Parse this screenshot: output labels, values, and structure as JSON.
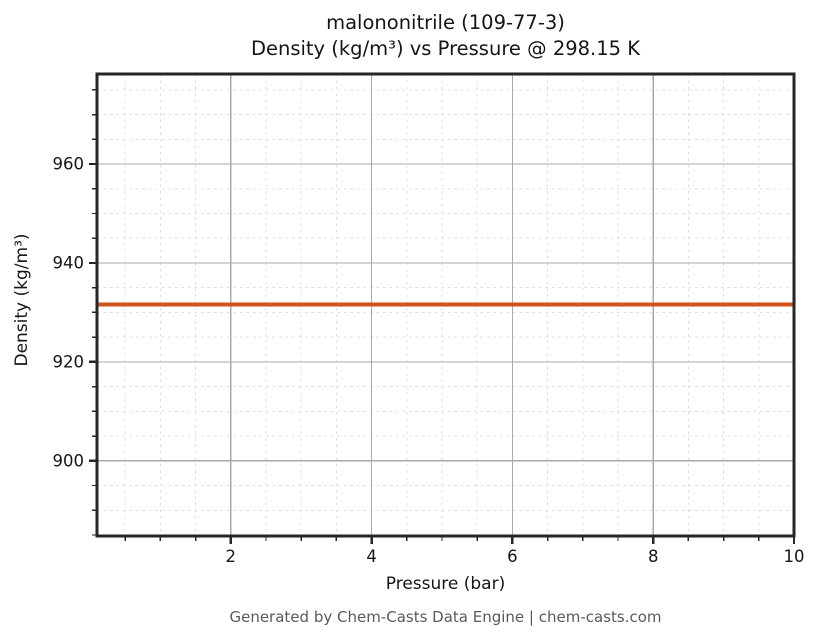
{
  "title": {
    "line1": "malononitrile (109-77-3)",
    "line2": "Density (kg/m³) vs Pressure @ 298.15 K"
  },
  "footer": "Generated by Chem-Casts Data Engine | chem-casts.com",
  "chart_data": {
    "type": "line",
    "title": "malononitrile (109-77-3)\nDensity (kg/m³) vs Pressure @ 298.15 K",
    "xlabel": "Pressure (bar)",
    "ylabel": "Density (kg/m³)",
    "xlim": [
      0.1,
      10
    ],
    "ylim": [
      884.8,
      978.2
    ],
    "x_major_ticks": [
      2,
      4,
      6,
      8,
      10
    ],
    "y_major_ticks": [
      900,
      920,
      940,
      960
    ],
    "x_minor_step": 0.5,
    "y_minor_step": 5,
    "grid": {
      "major": "solid",
      "minor": "dashed"
    },
    "legend": "none",
    "series": [
      {
        "name": "Density",
        "color": "#d2521e",
        "linewidth": 4,
        "x": [
          0.1,
          1,
          2,
          3,
          4,
          5,
          6,
          7,
          8,
          9,
          10
        ],
        "y": [
          931.6,
          931.6,
          931.6,
          931.6,
          931.6,
          931.6,
          931.6,
          931.6,
          931.6,
          931.6,
          931.6
        ]
      }
    ]
  },
  "colors": {
    "background": "#ffffff",
    "spine": "#262626",
    "grid_major": "#aaaaaa",
    "grid_minor": "#dcdcdc",
    "tick": "#262626",
    "text": "#151515",
    "footer_text": "#5a5a5a"
  }
}
